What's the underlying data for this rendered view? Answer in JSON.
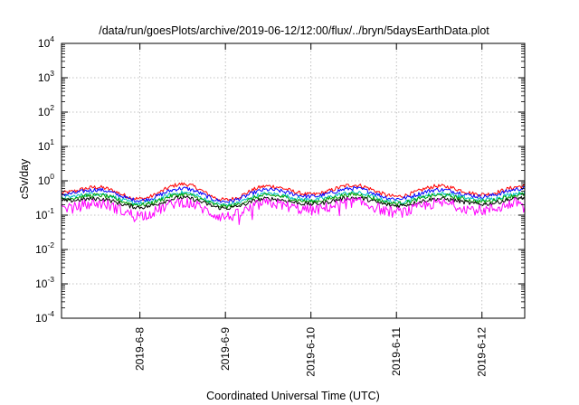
{
  "chart_data": {
    "type": "line",
    "title": "/data/run/goesPlots/archive/2019-06-12/12:00/flux/../bryn/5daysEarthData.plot",
    "xlabel": "Coordinated Universal Time (UTC)",
    "ylabel": "cSv/day",
    "y_scale": "log",
    "ylim": [
      0.0001,
      10000
    ],
    "x_range": [
      "2019-06-07 02:00",
      "2019-06-12 12:00"
    ],
    "x_ticks": [
      "2019-6-8",
      "2019-6-9",
      "2019-6-10",
      "2019-6-11",
      "2019-6-12"
    ],
    "y_ticks": [
      {
        "base": "10",
        "exp": "-4",
        "value": 0.0001
      },
      {
        "base": "10",
        "exp": "-3",
        "value": 0.001
      },
      {
        "base": "10",
        "exp": "-2",
        "value": 0.01
      },
      {
        "base": "10",
        "exp": "-1",
        "value": 0.1
      },
      {
        "base": "10",
        "exp": "0",
        "value": 1
      },
      {
        "base": "10",
        "exp": "1",
        "value": 10
      },
      {
        "base": "10",
        "exp": "2",
        "value": 100
      },
      {
        "base": "10",
        "exp": "3",
        "value": 1000
      },
      {
        "base": "10",
        "exp": "4",
        "value": 10000
      }
    ],
    "grid": true,
    "series": [
      {
        "color": "#ff0000",
        "x": [
          "2019-06-07 02:00",
          "2019-06-07 12:00",
          "2019-06-08 00:00",
          "2019-06-08 12:00",
          "2019-06-09 00:00",
          "2019-06-09 12:00",
          "2019-06-10 00:00",
          "2019-06-10 12:00",
          "2019-06-11 00:00",
          "2019-06-11 12:00",
          "2019-06-12 00:00",
          "2019-06-12 12:00"
        ],
        "values": [
          0.45,
          0.65,
          0.3,
          0.8,
          0.28,
          0.7,
          0.4,
          0.75,
          0.35,
          0.7,
          0.4,
          0.7
        ]
      },
      {
        "color": "#0000ff",
        "x": [
          "2019-06-07 02:00",
          "2019-06-07 12:00",
          "2019-06-08 00:00",
          "2019-06-08 12:00",
          "2019-06-09 00:00",
          "2019-06-09 12:00",
          "2019-06-10 00:00",
          "2019-06-10 12:00",
          "2019-06-11 00:00",
          "2019-06-11 12:00",
          "2019-06-12 00:00",
          "2019-06-12 12:00"
        ],
        "values": [
          0.4,
          0.55,
          0.27,
          0.6,
          0.25,
          0.55,
          0.35,
          0.6,
          0.3,
          0.55,
          0.35,
          0.6
        ]
      },
      {
        "color": "#00c0c0",
        "x": [
          "2019-06-07 02:00",
          "2019-06-07 12:00",
          "2019-06-08 00:00",
          "2019-06-08 12:00",
          "2019-06-09 00:00",
          "2019-06-09 12:00",
          "2019-06-10 00:00",
          "2019-06-10 12:00",
          "2019-06-11 00:00",
          "2019-06-11 12:00",
          "2019-06-12 00:00",
          "2019-06-12 12:00"
        ],
        "values": [
          0.33,
          0.42,
          0.22,
          0.45,
          0.2,
          0.42,
          0.28,
          0.45,
          0.24,
          0.42,
          0.28,
          0.45
        ]
      },
      {
        "color": "#00a000",
        "x": [
          "2019-06-07 02:00",
          "2019-06-07 12:00",
          "2019-06-08 00:00",
          "2019-06-08 12:00",
          "2019-06-09 00:00",
          "2019-06-09 12:00",
          "2019-06-10 00:00",
          "2019-06-10 12:00",
          "2019-06-11 00:00",
          "2019-06-11 12:00",
          "2019-06-12 00:00",
          "2019-06-12 12:00"
        ],
        "values": [
          0.3,
          0.38,
          0.2,
          0.4,
          0.18,
          0.38,
          0.25,
          0.4,
          0.22,
          0.38,
          0.25,
          0.4
        ]
      },
      {
        "color": "#000000",
        "x": [
          "2019-06-07 02:00",
          "2019-06-07 12:00",
          "2019-06-08 00:00",
          "2019-06-08 12:00",
          "2019-06-09 00:00",
          "2019-06-09 12:00",
          "2019-06-10 00:00",
          "2019-06-10 12:00",
          "2019-06-11 00:00",
          "2019-06-11 12:00",
          "2019-06-12 00:00",
          "2019-06-12 12:00"
        ],
        "values": [
          0.26,
          0.3,
          0.17,
          0.32,
          0.16,
          0.3,
          0.21,
          0.32,
          0.19,
          0.3,
          0.21,
          0.32
        ]
      },
      {
        "color": "#ff00ff",
        "x": [
          "2019-06-07 02:00",
          "2019-06-07 12:00",
          "2019-06-08 00:00",
          "2019-06-08 12:00",
          "2019-06-09 00:00",
          "2019-06-09 12:00",
          "2019-06-10 00:00",
          "2019-06-10 12:00",
          "2019-06-11 00:00",
          "2019-06-11 12:00",
          "2019-06-12 00:00",
          "2019-06-12 12:00"
        ],
        "values": [
          0.15,
          0.22,
          0.1,
          0.24,
          0.09,
          0.22,
          0.14,
          0.24,
          0.12,
          0.22,
          0.14,
          0.24
        ]
      }
    ]
  }
}
